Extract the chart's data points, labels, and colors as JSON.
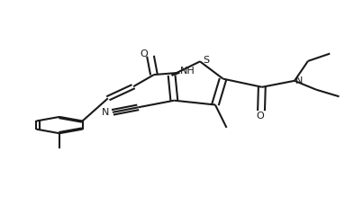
{
  "bg_color": "#ffffff",
  "line_color": "#1a1a1a",
  "line_width": 1.5,
  "figsize": [
    3.93,
    2.19
  ],
  "dpi": 100,
  "xlim": [
    0.0,
    1.0
  ],
  "ylim": [
    0.0,
    1.0
  ]
}
